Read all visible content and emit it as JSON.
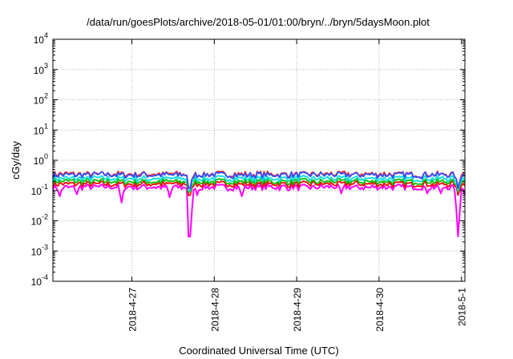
{
  "chart_data": {
    "type": "line",
    "title": "/data/run/goesPlots/archive/2018-05-01/01:00/bryn/../bryn/5daysMoon.plot",
    "xlabel": "Coordinated Universal Time (UTC)",
    "ylabel": "cGy/day",
    "yscale": "log",
    "ylim": [
      0.0001,
      10000
    ],
    "y_ticks": [
      {
        "value": 0.0001,
        "base": "10",
        "exp": "-4"
      },
      {
        "value": 0.001,
        "base": "10",
        "exp": "-3"
      },
      {
        "value": 0.01,
        "base": "10",
        "exp": "-2"
      },
      {
        "value": 0.1,
        "base": "10",
        "exp": "-1"
      },
      {
        "value": 1,
        "base": "10",
        "exp": "0"
      },
      {
        "value": 10,
        "base": "10",
        "exp": "1"
      },
      {
        "value": 100,
        "base": "10",
        "exp": "2"
      },
      {
        "value": 1000,
        "base": "10",
        "exp": "3"
      },
      {
        "value": 10000,
        "base": "10",
        "exp": "4"
      }
    ],
    "xlim": [
      "2018-04-26 01:00",
      "2018-05-01 01:00"
    ],
    "x_ticks": [
      "2018-4-27",
      "2018-4-28",
      "2018-4-29",
      "2018-4-30",
      "2018-5-1"
    ],
    "grid": true,
    "series": [
      {
        "color": "#ff00ff",
        "baseline": 0.13,
        "dips": [
          {
            "x": "2018-04-26 03:00",
            "y": 0.065
          },
          {
            "x": "2018-04-26 08:00",
            "y": 0.075
          },
          {
            "x": "2018-04-26 21:00",
            "y": 0.04
          },
          {
            "x": "2018-04-27 11:00",
            "y": 0.06
          },
          {
            "x": "2018-04-27 16:50",
            "y": 0.003
          },
          {
            "x": "2018-04-27 19:00",
            "y": 0.07
          },
          {
            "x": "2018-04-28 08:00",
            "y": 0.065
          },
          {
            "x": "2018-04-29 13:00",
            "y": 0.08
          },
          {
            "x": "2018-04-30 14:00",
            "y": 0.08
          },
          {
            "x": "2018-04-30 18:00",
            "y": 0.08
          },
          {
            "x": "2018-04-30 22:55",
            "y": 0.003
          },
          {
            "x": "2018-05-01 01:00",
            "y": 0.07
          }
        ]
      },
      {
        "color": "#ff0000",
        "baseline": 0.165,
        "dips": [
          {
            "x": "2018-04-27 16:50",
            "y": 0.07
          },
          {
            "x": "2018-04-30 22:55",
            "y": 0.07
          }
        ]
      },
      {
        "color": "#00c000",
        "baseline": 0.2,
        "dips": [
          {
            "x": "2018-04-27 16:50",
            "y": 0.09
          },
          {
            "x": "2018-04-30 22:55",
            "y": 0.09
          }
        ]
      },
      {
        "color": "#00e0e0",
        "baseline": 0.25,
        "dips": [
          {
            "x": "2018-04-27 16:50",
            "y": 0.1
          },
          {
            "x": "2018-04-30 22:55",
            "y": 0.1
          }
        ]
      },
      {
        "color": "#ff2020",
        "baseline": 0.35,
        "dips": [
          {
            "x": "2018-04-27 16:50",
            "y": 0.12
          },
          {
            "x": "2018-04-30 22:55",
            "y": 0.12
          }
        ]
      },
      {
        "color": "#3050ff",
        "baseline": 0.33,
        "dips": [
          {
            "x": "2018-04-27 16:50",
            "y": 0.12
          },
          {
            "x": "2018-04-30 22:55",
            "y": 0.12
          }
        ]
      }
    ]
  }
}
